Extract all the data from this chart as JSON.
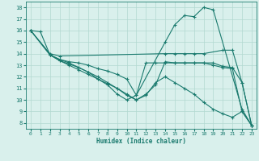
{
  "xlabel": "Humidex (Indice chaleur)",
  "xlim": [
    -0.5,
    23.5
  ],
  "ylim": [
    7.5,
    18.5
  ],
  "yticks": [
    8,
    9,
    10,
    11,
    12,
    13,
    14,
    15,
    16,
    17,
    18
  ],
  "xticks": [
    0,
    1,
    2,
    3,
    4,
    5,
    6,
    7,
    8,
    9,
    10,
    11,
    12,
    13,
    14,
    15,
    16,
    17,
    18,
    19,
    20,
    21,
    22,
    23
  ],
  "line_color": "#1a7a6e",
  "bg_color": "#d9f0ec",
  "grid_color": "#b2d8d0",
  "lines": [
    {
      "x": [
        0,
        1,
        2,
        3,
        4,
        5,
        6,
        7,
        8,
        9,
        10,
        11,
        14,
        15,
        16,
        17,
        18,
        19,
        22,
        23
      ],
      "y": [
        16,
        15.9,
        13.9,
        13.5,
        13.2,
        12.8,
        12.4,
        11.8,
        11.3,
        10.5,
        10.0,
        10.4,
        15.0,
        16.5,
        17.3,
        17.2,
        18.0,
        17.8,
        9.2,
        7.8
      ]
    },
    {
      "x": [
        0,
        2,
        3,
        14,
        15,
        16,
        17,
        18,
        20,
        21,
        22,
        23
      ],
      "y": [
        16,
        14.0,
        13.8,
        14.0,
        14.0,
        14.0,
        14.0,
        14.0,
        14.3,
        14.3,
        11.5,
        7.8
      ]
    },
    {
      "x": [
        0,
        2,
        3,
        4,
        5,
        6,
        7,
        8,
        9,
        10,
        11,
        12,
        13,
        14,
        15,
        16,
        17,
        18,
        19,
        20,
        21,
        22,
        23
      ],
      "y": [
        16,
        13.9,
        13.5,
        13.3,
        13.2,
        13.0,
        12.7,
        12.5,
        12.2,
        11.8,
        10.4,
        13.2,
        13.2,
        13.2,
        13.2,
        13.2,
        13.2,
        13.2,
        13.2,
        12.9,
        12.8,
        11.5,
        7.8
      ]
    },
    {
      "x": [
        0,
        2,
        3,
        4,
        5,
        6,
        7,
        8,
        9,
        10,
        11,
        12,
        13,
        14,
        15,
        16,
        17,
        18,
        19,
        20,
        21,
        22,
        23
      ],
      "y": [
        16,
        13.9,
        13.4,
        13.1,
        12.8,
        12.4,
        12.0,
        11.5,
        11.0,
        10.4,
        10.0,
        10.4,
        11.5,
        12.0,
        11.5,
        11.0,
        10.5,
        9.8,
        9.2,
        8.8,
        8.5,
        9.0,
        7.8
      ]
    },
    {
      "x": [
        2,
        3,
        4,
        5,
        6,
        7,
        8,
        9,
        10,
        11,
        12,
        13,
        14,
        15,
        16,
        17,
        18,
        19,
        20,
        21,
        22,
        23
      ],
      "y": [
        13.9,
        13.4,
        13.0,
        12.6,
        12.2,
        11.8,
        11.4,
        11.0,
        10.5,
        10.0,
        10.5,
        11.3,
        13.3,
        13.2,
        13.2,
        13.2,
        13.2,
        13.0,
        12.8,
        12.7,
        9.0,
        7.8
      ]
    }
  ]
}
